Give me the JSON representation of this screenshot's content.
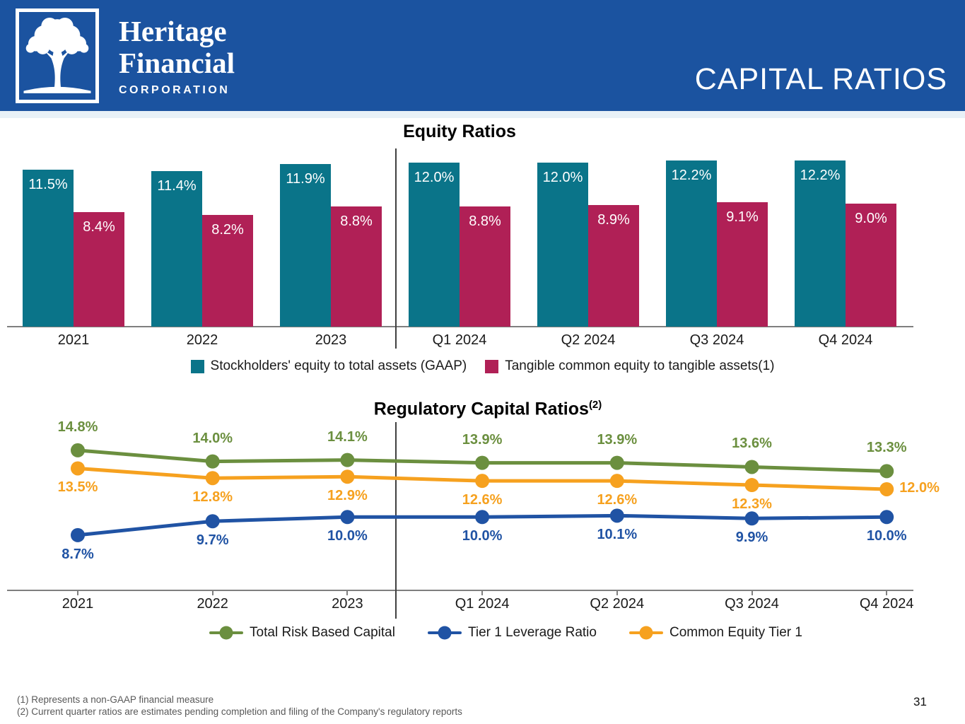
{
  "header": {
    "logo_line1": "Heritage",
    "logo_line2": "Financial",
    "logo_line3": "CORPORATION",
    "title": "CAPITAL RATIOS",
    "brand_blue": "#1B53A0"
  },
  "chart_data": [
    {
      "id": "equity_ratios",
      "type": "bar",
      "title": "Equity Ratios",
      "categories": [
        "2021",
        "2022",
        "2023",
        "Q1 2024",
        "Q2 2024",
        "Q3 2024",
        "Q4 2024"
      ],
      "series": [
        {
          "name": "Stockholders' equity to total assets (GAAP)",
          "color": "#0A7489",
          "values": [
            11.5,
            11.4,
            11.9,
            12.0,
            12.0,
            12.2,
            12.2
          ]
        },
        {
          "name": "Tangible common equity to tangible assets(1)",
          "color": "#B02056",
          "values": [
            8.4,
            8.2,
            8.8,
            8.8,
            8.9,
            9.1,
            9.0
          ]
        }
      ],
      "value_suffix": "%",
      "ylim": [
        0,
        12.5
      ],
      "grid": false,
      "divider_after_category": "2023",
      "legend_position": "bottom"
    },
    {
      "id": "regulatory_capital_ratios",
      "type": "line",
      "title": "Regulatory Capital Ratios",
      "title_superscript": "(2)",
      "categories": [
        "2021",
        "2022",
        "2023",
        "Q1 2024",
        "Q2 2024",
        "Q3 2024",
        "Q4 2024"
      ],
      "series": [
        {
          "name": "Total Risk Based Capital",
          "color": "#6B8F3F",
          "values": [
            14.8,
            14.0,
            14.1,
            13.9,
            13.9,
            13.6,
            13.3
          ],
          "label_position": "above"
        },
        {
          "name": "Tier 1 Leverage Ratio",
          "color": "#2053A4",
          "values": [
            8.7,
            9.7,
            10.0,
            10.0,
            10.1,
            9.9,
            10.0
          ],
          "label_position": "below"
        },
        {
          "name": "Common Equity Tier 1",
          "color": "#F6A11F",
          "values": [
            13.5,
            12.8,
            12.9,
            12.6,
            12.6,
            12.3,
            12.0
          ],
          "label_position": "below",
          "last_label_position": "right"
        }
      ],
      "value_suffix": "%",
      "ylim": [
        8,
        15.5
      ],
      "grid": false,
      "divider_after_category": "2023",
      "legend_position": "bottom"
    }
  ],
  "footnotes": [
    "(1) Represents a non-GAAP financial measure",
    "(2) Current quarter ratios are estimates pending completion and filing of the Company's regulatory reports"
  ],
  "page_number": "31"
}
